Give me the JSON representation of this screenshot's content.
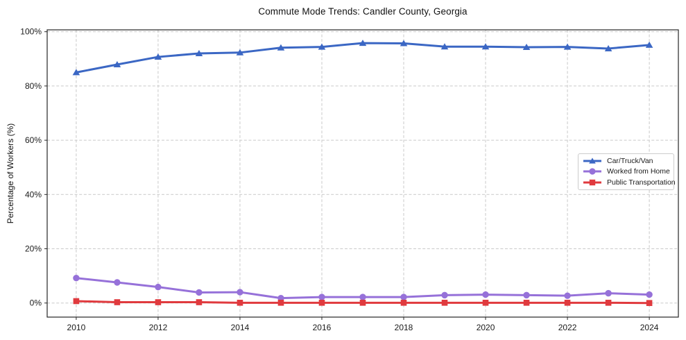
{
  "figure": {
    "title": "Commute Mode Trends: Candler County, Georgia",
    "ylabel": "Percentage of Workers (%)"
  },
  "chart_data": {
    "type": "line",
    "title": "Commute Mode Trends: Candler County, Georgia",
    "xlabel": "",
    "ylabel": "Percentage of Workers (%)",
    "x": [
      2010,
      2011,
      2012,
      2013,
      2014,
      2015,
      2016,
      2017,
      2018,
      2019,
      2020,
      2021,
      2022,
      2023,
      2024
    ],
    "x_ticks": [
      2010,
      2012,
      2014,
      2016,
      2018,
      2020,
      2022,
      2024
    ],
    "x_tick_labels": [
      "2010",
      "2012",
      "2014",
      "2016",
      "2018",
      "2020",
      "2022",
      "2024"
    ],
    "y_ticks": [
      0,
      20,
      40,
      60,
      80,
      100
    ],
    "y_tick_labels": [
      "0%",
      "20%",
      "40%",
      "60%",
      "80%",
      "100%"
    ],
    "xlim": [
      2009.29,
      2024.71
    ],
    "ylim": [
      -5.19,
      100.69
    ],
    "grid": true,
    "grid_color": "#c9c9c9",
    "axis_color": "#262626",
    "background": "#ffffff",
    "legend_position": "center right",
    "series": [
      {
        "name": "Car/Truck/Van",
        "color": "#3b67c4",
        "marker": "triangle",
        "values": [
          85.0,
          87.9,
          90.7,
          92.0,
          92.3,
          94.1,
          94.4,
          95.8,
          95.7,
          94.5,
          94.5,
          94.3,
          94.4,
          93.8,
          95.1
        ]
      },
      {
        "name": "Worked from Home",
        "color": "#9671d9",
        "marker": "circle",
        "values": [
          9.2,
          7.6,
          5.9,
          3.9,
          4.0,
          1.8,
          2.2,
          2.2,
          2.2,
          2.9,
          3.1,
          2.9,
          2.7,
          3.6,
          3.1
        ]
      },
      {
        "name": "Public Transportation",
        "color": "#e03a3e",
        "marker": "square",
        "values": [
          0.7,
          0.3,
          0.3,
          0.3,
          0.1,
          0.1,
          0.1,
          0.1,
          0.1,
          0.1,
          0.1,
          0.1,
          0.1,
          0.1,
          0.0
        ]
      }
    ]
  }
}
